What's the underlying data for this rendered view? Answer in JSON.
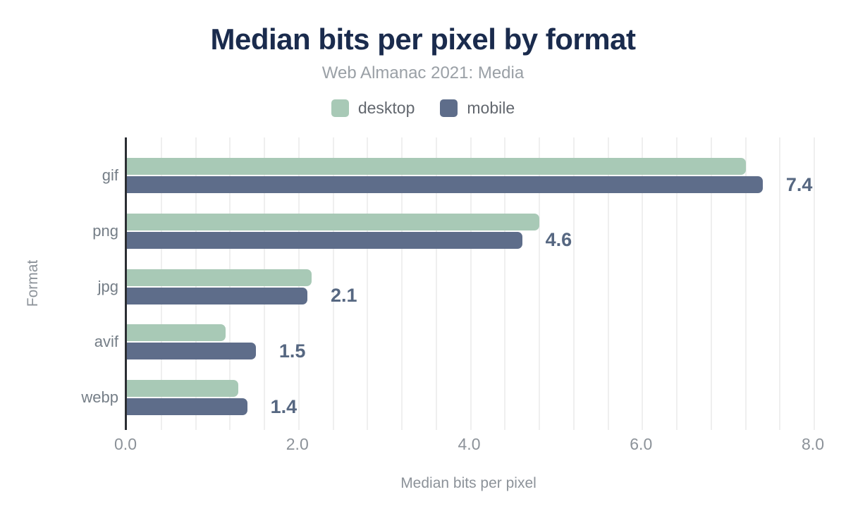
{
  "header": {
    "title": "Median bits per pixel by format",
    "subtitle": "Web Almanac 2021: Media"
  },
  "legend": {
    "items": [
      {
        "label": "desktop",
        "color": "#a8c9b6"
      },
      {
        "label": "mobile",
        "color": "#5e6d8a"
      }
    ]
  },
  "axes": {
    "x_title": "Median bits per pixel",
    "y_title": "Format",
    "x_tick_labels": [
      "0.0",
      "2.0",
      "4.0",
      "6.0",
      "8.0"
    ],
    "x_tick_values": [
      0,
      2,
      4,
      6,
      8
    ],
    "x_range": [
      0,
      8
    ],
    "minor_grid_step": 0.4
  },
  "chart_data": {
    "type": "bar",
    "orientation": "horizontal",
    "title": "Median bits per pixel by format",
    "subtitle": "Web Almanac 2021: Media",
    "xlabel": "Median bits per pixel",
    "ylabel": "Format",
    "xlim": [
      0,
      8
    ],
    "x_ticks": [
      0,
      2,
      4,
      6,
      8
    ],
    "grid": true,
    "legend_position": "top",
    "categories": [
      "gif",
      "png",
      "jpg",
      "avif",
      "webp"
    ],
    "series": [
      {
        "name": "desktop",
        "color": "#a8c9b6",
        "values": [
          7.2,
          4.8,
          2.15,
          1.15,
          1.3
        ]
      },
      {
        "name": "mobile",
        "color": "#5e6d8a",
        "values": [
          7.4,
          4.6,
          2.1,
          1.5,
          1.4
        ]
      }
    ],
    "bar_labels": {
      "labeled_series": "mobile",
      "values": [
        "7.4",
        "4.6",
        "2.1",
        "1.5",
        "1.4"
      ]
    }
  },
  "colors": {
    "title": "#1a2b4d",
    "subtitle": "#9aa0a6",
    "legend_text": "#63686f",
    "axis_line": "#2b2e33",
    "gridline": "#efefef",
    "tick_label": "#8c9299",
    "axis_title": "#8c9299",
    "category_label": "#757e87",
    "value_label": "#566781",
    "desktop_bar": "#a8c9b6",
    "mobile_bar": "#5e6d8a"
  }
}
